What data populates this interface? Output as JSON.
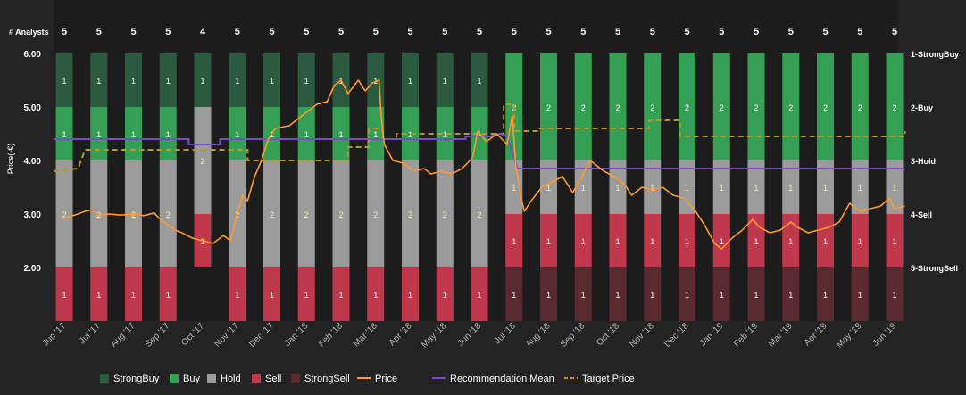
{
  "chart_data": {
    "type": "stacked-bar + line",
    "analysts_label": "# Analysts",
    "y_axis_label": "Price(-€)",
    "y_ticks": [
      "6.00",
      "5.00",
      "4.00",
      "3.00",
      "2.00"
    ],
    "ylim": [
      1.0,
      6.0
    ],
    "right_labels": [
      "1-StrongBuy",
      "2-Buy",
      "3-Hold",
      "4-Sell",
      "5-StrongSell"
    ],
    "months": [
      "Jun '17",
      "Jul '17",
      "Aug '17",
      "Sep '17",
      "Oct '17",
      "Nov '17",
      "Dec '17",
      "Jan '18",
      "Feb '18",
      "Mar '18",
      "Apr '18",
      "May '18",
      "Jun '18",
      "Jul '18",
      "Aug '18",
      "Sep '18",
      "Oct '18",
      "Nov '18",
      "Dec '18",
      "Jan '19",
      "Feb '19",
      "Mar '19",
      "Apr '19",
      "May '19",
      "Jun '19"
    ],
    "analysts": [
      5,
      5,
      5,
      5,
      4,
      5,
      5,
      5,
      5,
      5,
      5,
      5,
      5,
      5,
      5,
      5,
      5,
      5,
      5,
      5,
      5,
      5,
      5,
      5,
      5
    ],
    "rating_counts": [
      {
        "StrongBuy": 1,
        "Buy": 1,
        "Hold": 2,
        "Sell": 1,
        "StrongSell": 0
      },
      {
        "StrongBuy": 1,
        "Buy": 1,
        "Hold": 2,
        "Sell": 1,
        "StrongSell": 0
      },
      {
        "StrongBuy": 1,
        "Buy": 1,
        "Hold": 2,
        "Sell": 1,
        "StrongSell": 0
      },
      {
        "StrongBuy": 1,
        "Buy": 1,
        "Hold": 2,
        "Sell": 1,
        "StrongSell": 0
      },
      {
        "StrongBuy": 1,
        "Buy": 0,
        "Hold": 2,
        "Sell": 1,
        "StrongSell": 0
      },
      {
        "StrongBuy": 1,
        "Buy": 1,
        "Hold": 2,
        "Sell": 1,
        "StrongSell": 0
      },
      {
        "StrongBuy": 1,
        "Buy": 1,
        "Hold": 2,
        "Sell": 1,
        "StrongSell": 0
      },
      {
        "StrongBuy": 1,
        "Buy": 1,
        "Hold": 2,
        "Sell": 1,
        "StrongSell": 0
      },
      {
        "StrongBuy": 1,
        "Buy": 1,
        "Hold": 2,
        "Sell": 1,
        "StrongSell": 0
      },
      {
        "StrongBuy": 1,
        "Buy": 1,
        "Hold": 2,
        "Sell": 1,
        "StrongSell": 0
      },
      {
        "StrongBuy": 1,
        "Buy": 1,
        "Hold": 2,
        "Sell": 1,
        "StrongSell": 0
      },
      {
        "StrongBuy": 1,
        "Buy": 1,
        "Hold": 2,
        "Sell": 1,
        "StrongSell": 0
      },
      {
        "StrongBuy": 1,
        "Buy": 1,
        "Hold": 2,
        "Sell": 1,
        "StrongSell": 0
      },
      {
        "StrongBuy": 0,
        "Buy": 2,
        "Hold": 1,
        "Sell": 1,
        "StrongSell": 1
      },
      {
        "StrongBuy": 0,
        "Buy": 2,
        "Hold": 1,
        "Sell": 1,
        "StrongSell": 1
      },
      {
        "StrongBuy": 0,
        "Buy": 2,
        "Hold": 1,
        "Sell": 1,
        "StrongSell": 1
      },
      {
        "StrongBuy": 0,
        "Buy": 2,
        "Hold": 1,
        "Sell": 1,
        "StrongSell": 1
      },
      {
        "StrongBuy": 0,
        "Buy": 2,
        "Hold": 1,
        "Sell": 1,
        "StrongSell": 1
      },
      {
        "StrongBuy": 0,
        "Buy": 2,
        "Hold": 1,
        "Sell": 1,
        "StrongSell": 1
      },
      {
        "StrongBuy": 0,
        "Buy": 2,
        "Hold": 1,
        "Sell": 1,
        "StrongSell": 1
      },
      {
        "StrongBuy": 0,
        "Buy": 2,
        "Hold": 1,
        "Sell": 1,
        "StrongSell": 1
      },
      {
        "StrongBuy": 0,
        "Buy": 2,
        "Hold": 1,
        "Sell": 1,
        "StrongSell": 1
      },
      {
        "StrongBuy": 0,
        "Buy": 2,
        "Hold": 1,
        "Sell": 1,
        "StrongSell": 1
      },
      {
        "StrongBuy": 0,
        "Buy": 2,
        "Hold": 1,
        "Sell": 1,
        "StrongSell": 1
      },
      {
        "StrongBuy": 0,
        "Buy": 2,
        "Hold": 1,
        "Sell": 1,
        "StrongSell": 1
      }
    ],
    "price": [
      [
        0,
        2.92
      ],
      [
        0.3,
        2.98
      ],
      [
        0.6,
        3.05
      ],
      [
        0.8,
        3.08
      ],
      [
        1.0,
        2.97
      ],
      [
        1.3,
        3.0
      ],
      [
        1.6,
        2.98
      ],
      [
        2.0,
        3.0
      ],
      [
        2.3,
        2.97
      ],
      [
        2.6,
        3.02
      ],
      [
        2.8,
        2.88
      ],
      [
        3.0,
        2.8
      ],
      [
        3.2,
        2.7
      ],
      [
        3.4,
        2.65
      ],
      [
        3.7,
        2.55
      ],
      [
        4.0,
        2.5
      ],
      [
        4.3,
        2.45
      ],
      [
        4.6,
        2.6
      ],
      [
        4.8,
        2.5
      ],
      [
        5.0,
        3.0
      ],
      [
        5.15,
        3.35
      ],
      [
        5.3,
        3.25
      ],
      [
        5.5,
        3.7
      ],
      [
        5.7,
        4.0
      ],
      [
        5.9,
        4.4
      ],
      [
        6.1,
        4.6
      ],
      [
        6.5,
        4.65
      ],
      [
        6.8,
        4.8
      ],
      [
        7.0,
        4.9
      ],
      [
        7.3,
        5.05
      ],
      [
        7.6,
        5.1
      ],
      [
        7.8,
        5.4
      ],
      [
        8.0,
        5.5
      ],
      [
        8.2,
        5.25
      ],
      [
        8.5,
        5.5
      ],
      [
        8.7,
        5.3
      ],
      [
        8.9,
        5.45
      ],
      [
        9.1,
        5.5
      ],
      [
        9.15,
        4.9
      ],
      [
        9.25,
        4.3
      ],
      [
        9.5,
        4.0
      ],
      [
        9.8,
        3.95
      ],
      [
        10.1,
        3.8
      ],
      [
        10.4,
        3.85
      ],
      [
        10.6,
        3.75
      ],
      [
        10.9,
        3.8
      ],
      [
        11.2,
        3.75
      ],
      [
        11.5,
        3.85
      ],
      [
        11.8,
        4.05
      ],
      [
        11.95,
        4.55
      ],
      [
        12.2,
        4.35
      ],
      [
        12.5,
        4.5
      ],
      [
        12.8,
        4.3
      ],
      [
        12.95,
        4.85
      ],
      [
        13.05,
        3.9
      ],
      [
        13.2,
        3.3
      ],
      [
        13.3,
        3.05
      ],
      [
        13.5,
        3.25
      ],
      [
        13.8,
        3.5
      ],
      [
        14.1,
        3.6
      ],
      [
        14.4,
        3.7
      ],
      [
        14.7,
        3.4
      ],
      [
        15.0,
        3.75
      ],
      [
        15.2,
        4.0
      ],
      [
        15.4,
        3.9
      ],
      [
        15.6,
        3.8
      ],
      [
        15.9,
        3.7
      ],
      [
        16.2,
        3.55
      ],
      [
        16.4,
        3.35
      ],
      [
        16.7,
        3.5
      ],
      [
        17.0,
        3.45
      ],
      [
        17.3,
        3.5
      ],
      [
        17.6,
        3.35
      ],
      [
        17.9,
        3.3
      ],
      [
        18.2,
        3.1
      ],
      [
        18.5,
        2.8
      ],
      [
        18.8,
        2.45
      ],
      [
        19.0,
        2.35
      ],
      [
        19.3,
        2.55
      ],
      [
        19.6,
        2.7
      ],
      [
        19.9,
        2.9
      ],
      [
        20.1,
        2.75
      ],
      [
        20.4,
        2.65
      ],
      [
        20.7,
        2.7
      ],
      [
        21.0,
        2.85
      ],
      [
        21.2,
        2.75
      ],
      [
        21.5,
        2.65
      ],
      [
        21.8,
        2.7
      ],
      [
        22.1,
        2.75
      ],
      [
        22.4,
        2.85
      ],
      [
        22.7,
        3.2
      ],
      [
        23.0,
        3.05
      ],
      [
        23.3,
        3.1
      ],
      [
        23.6,
        3.15
      ],
      [
        23.85,
        3.3
      ],
      [
        24.0,
        3.1
      ],
      [
        24.3,
        3.15
      ]
    ],
    "recommendation_mean": [
      [
        -0.3,
        4.4
      ],
      [
        3.6,
        4.4
      ],
      [
        3.6,
        4.3
      ],
      [
        4.5,
        4.3
      ],
      [
        4.5,
        4.4
      ],
      [
        11.6,
        4.4
      ],
      [
        11.6,
        4.45
      ],
      [
        12.3,
        4.45
      ],
      [
        12.6,
        4.5
      ],
      [
        12.8,
        4.45
      ],
      [
        13.1,
        3.85
      ],
      [
        24.3,
        3.85
      ]
    ],
    "target_price": [
      [
        -0.3,
        3.8
      ],
      [
        0.4,
        3.85
      ],
      [
        0.6,
        4.2
      ],
      [
        5.3,
        4.2
      ],
      [
        5.3,
        4.0
      ],
      [
        8.2,
        4.0
      ],
      [
        8.2,
        4.25
      ],
      [
        8.8,
        4.25
      ],
      [
        8.8,
        4.6
      ],
      [
        9.2,
        4.6
      ],
      [
        9.2,
        4.4
      ],
      [
        9.6,
        4.4
      ],
      [
        9.6,
        4.5
      ],
      [
        12.7,
        4.5
      ],
      [
        12.7,
        5.05
      ],
      [
        13.0,
        5.05
      ],
      [
        13.0,
        4.55
      ],
      [
        13.7,
        4.55
      ],
      [
        13.7,
        4.6
      ],
      [
        16.9,
        4.6
      ],
      [
        16.9,
        4.75
      ],
      [
        17.8,
        4.75
      ],
      [
        17.8,
        4.45
      ],
      [
        24.3,
        4.45
      ],
      [
        24.3,
        4.55
      ]
    ],
    "legend": [
      {
        "name": "StrongBuy",
        "type": "box",
        "color": "#2c5a3f"
      },
      {
        "name": "Buy",
        "type": "box",
        "color": "#35a055"
      },
      {
        "name": "Hold",
        "type": "box",
        "color": "#9b9b9b"
      },
      {
        "name": "Sell",
        "type": "box",
        "color": "#c0384b"
      },
      {
        "name": "StrongSell",
        "type": "box",
        "color": "#5a2a30"
      },
      {
        "name": "Price",
        "type": "line",
        "color": "#ff9933"
      },
      {
        "name": "Recommendation Mean",
        "type": "line",
        "color": "#7a4bc6"
      },
      {
        "name": "Target Price",
        "type": "dash",
        "color": "#b59a2b"
      }
    ]
  }
}
